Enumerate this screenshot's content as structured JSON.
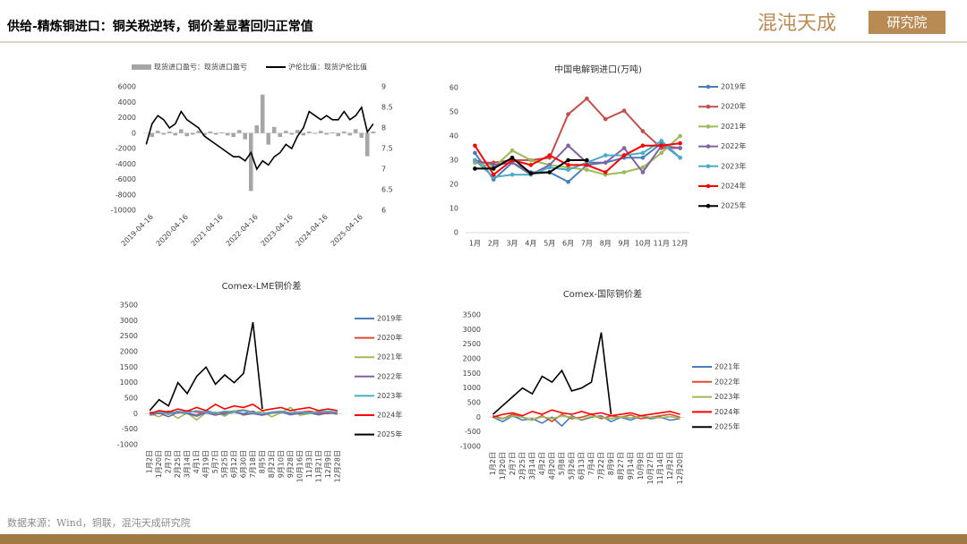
{
  "header": {
    "title": "供给-精炼铜进口：铜关税逆转，铜价差显著回归正常值",
    "logo_main": "混沌天成",
    "logo_sub": "研究院"
  },
  "footer": {
    "source": "数据来源：Wind，铜联，混沌天成研究院"
  },
  "chart_data": [
    {
      "type": "combo",
      "legend": "top",
      "categories": [
        null,
        "2019-04-16",
        null,
        null,
        null,
        null,
        null,
        "2020-04-16",
        null,
        null,
        null,
        null,
        null,
        "2021-04-16",
        null,
        null,
        null,
        null,
        null,
        "2022-04-16",
        null,
        null,
        null,
        null,
        null,
        "2023-04-16",
        null,
        null,
        null,
        null,
        null,
        "2024-04-16",
        null,
        null,
        null,
        null,
        null,
        "2025-04-16",
        null,
        null
      ],
      "ylim": [
        -10000,
        6000
      ],
      "yticks": [
        -10000,
        -8000,
        -6000,
        -4000,
        -2000,
        0,
        2000,
        4000,
        6000
      ],
      "y2lim": [
        6,
        9
      ],
      "y2ticks": [
        6,
        6.5,
        7,
        7.5,
        8,
        8.5,
        9
      ],
      "series": [
        {
          "name": "现货进口盈亏：现货进口盈亏",
          "color": "#a6a6a6",
          "kind": "bar",
          "axis": "y",
          "values": [
            0,
            -500,
            300,
            -200,
            200,
            -300,
            500,
            -400,
            -200,
            300,
            -300,
            200,
            -200,
            100,
            -300,
            -500,
            400,
            -800,
            -7500,
            1000,
            5000,
            -1500,
            800,
            -500,
            300,
            -200,
            400,
            -300,
            200,
            -100,
            300,
            -200,
            100,
            -400,
            200,
            -300,
            500,
            -600,
            -3000,
            200
          ]
        },
        {
          "name": "沪伦比值：现货沪伦比值",
          "color": "#000000",
          "kind": "line",
          "axis": "y2",
          "values": [
            7.6,
            8.1,
            8.3,
            8.2,
            8.0,
            8.1,
            8.4,
            8.2,
            8.1,
            8.0,
            7.8,
            7.7,
            7.6,
            7.5,
            7.4,
            7.3,
            7.3,
            7.2,
            7.4,
            7.0,
            7.2,
            7.1,
            7.3,
            7.4,
            7.6,
            7.5,
            7.8,
            8.0,
            8.4,
            8.3,
            8.2,
            8.3,
            8.2,
            8.2,
            8.4,
            8.2,
            8.3,
            8.5,
            7.9,
            8.1
          ]
        }
      ]
    },
    {
      "type": "line",
      "legend": "right",
      "title": "中国电解铜进口(万吨)",
      "categories": [
        "1月",
        "2月",
        "3月",
        "4月",
        "5月",
        "6月",
        "7月",
        "8月",
        "9月",
        "10月",
        "11月",
        "12月"
      ],
      "ylim": [
        0,
        60
      ],
      "yticks": [
        0,
        10,
        20,
        30,
        40,
        50,
        60
      ],
      "series": [
        {
          "name": "2019年",
          "color": "#4a7ebb",
          "values": [
            33,
            22,
            29,
            25,
            25,
            21,
            28,
            29,
            31,
            31,
            37,
            31
          ]
        },
        {
          "name": "2020年",
          "color": "#c0504d",
          "values": [
            29,
            29,
            30,
            30,
            31,
            49,
            55.5,
            47,
            50.5,
            42,
            35,
            35
          ]
        },
        {
          "name": "2021年",
          "color": "#9bbb59",
          "values": [
            29,
            27,
            34,
            30,
            28,
            27,
            26,
            24,
            25,
            27,
            33,
            40
          ]
        },
        {
          "name": "2022年",
          "color": "#8064a2",
          "values": [
            30,
            28,
            29,
            24,
            28,
            36,
            29,
            29,
            35,
            25,
            36,
            35
          ]
        },
        {
          "name": "2023年",
          "color": "#4bacc6",
          "values": [
            30,
            23,
            24,
            24,
            27,
            26,
            29,
            32,
            32,
            33,
            38,
            31
          ]
        },
        {
          "name": "2024年",
          "color": "#ff0000",
          "values": [
            36,
            24,
            30,
            28,
            32,
            28,
            28,
            25,
            32,
            36,
            36,
            37
          ]
        },
        {
          "name": "2025年",
          "color": "#000000",
          "values": [
            26.5,
            26.5,
            31,
            24.5,
            25,
            30,
            30,
            null,
            null,
            null,
            null,
            null
          ]
        }
      ]
    },
    {
      "type": "line",
      "legend": "right",
      "title": "Comex-LME铜价差",
      "categories": [
        "1月2日",
        "1月20日",
        "2月7日",
        "2月25日",
        "3月14日",
        "4月1日",
        "4月19日",
        "5月7日",
        "5月25日",
        "6月12日",
        "6月30日",
        "7月18日",
        "8月5日",
        "8月23日",
        "9月10日",
        "9月28日",
        "10月16日",
        "11月3日",
        "11月21日",
        "12月9日",
        "12月28日"
      ],
      "ylim": [
        -1000,
        3500
      ],
      "yticks": [
        -1000,
        -500,
        0,
        500,
        1000,
        1500,
        2000,
        2500,
        3000,
        3500
      ],
      "series": [
        {
          "name": "2019年",
          "color": "#4a7ebb",
          "values": [
            0,
            50,
            -20,
            80,
            30,
            -50,
            100,
            20,
            -30,
            50,
            0,
            80,
            -20,
            30,
            60,
            -40,
            20,
            50,
            0,
            30,
            40
          ]
        },
        {
          "name": "2020年",
          "color": "#e04a32",
          "values": [
            50,
            0,
            80,
            20,
            100,
            50,
            30,
            0,
            60,
            80,
            120,
            50,
            0,
            30,
            60,
            20,
            50,
            80,
            30,
            0,
            60
          ]
        },
        {
          "name": "2021年",
          "color": "#9bbb59",
          "values": [
            0,
            -100,
            50,
            -150,
            20,
            -200,
            30,
            50,
            -80,
            100,
            -50,
            20,
            80,
            -100,
            30,
            200,
            -50,
            0,
            100,
            50,
            -30
          ]
        },
        {
          "name": "2022年",
          "color": "#8064a2",
          "values": [
            -50,
            20,
            -100,
            50,
            0,
            -80,
            30,
            -50,
            20,
            60,
            -30,
            0,
            -50,
            20,
            50,
            -20,
            0,
            30,
            -40,
            20,
            0
          ]
        },
        {
          "name": "2023年",
          "color": "#4bacc6",
          "values": [
            20,
            50,
            0,
            80,
            30,
            100,
            50,
            20,
            80,
            50,
            100,
            30,
            0,
            50,
            80,
            30,
            60,
            20,
            50,
            80,
            40
          ]
        },
        {
          "name": "2024年",
          "color": "#ff0000",
          "values": [
            0,
            100,
            50,
            150,
            80,
            200,
            100,
            300,
            150,
            250,
            200,
            300,
            100,
            150,
            200,
            100,
            150,
            200,
            100,
            150,
            100
          ]
        },
        {
          "name": "2025年",
          "color": "#000000",
          "values": [
            100,
            450,
            250,
            1000,
            650,
            1200,
            1500,
            950,
            1250,
            1000,
            1300,
            2950,
            150,
            null,
            null,
            null,
            null,
            null,
            null,
            null,
            null
          ]
        }
      ]
    },
    {
      "type": "line",
      "legend": "right",
      "title": "Comex-国际铜价差",
      "categories": [
        "1月2日",
        "1月20日",
        "2月7日",
        "2月25日",
        "3月14日",
        "4月2日",
        "4月20日",
        "5月8日",
        "5月26日",
        "6月13日",
        "7月4日",
        "7月22日",
        "8月9日",
        "8月27日",
        "9月14日",
        "10月9日",
        "10月27日",
        "11月14日",
        "12月2日",
        "12月20日"
      ],
      "ylim": [
        -1000,
        3500
      ],
      "yticks": [
        -1000,
        -500,
        0,
        500,
        1000,
        1500,
        2000,
        2500,
        3000,
        3500
      ],
      "series": [
        {
          "name": "2021年",
          "color": "#4a7ebb",
          "values": [
            0,
            -150,
            50,
            -100,
            -50,
            -200,
            0,
            -300,
            50,
            -100,
            0,
            50,
            -150,
            0,
            -100,
            50,
            -50,
            0,
            -100,
            -50
          ]
        },
        {
          "name": "2022年",
          "color": "#e04a32",
          "values": [
            50,
            -50,
            100,
            0,
            -100,
            50,
            -150,
            100,
            -50,
            0,
            100,
            -50,
            50,
            0,
            80,
            -50,
            0,
            50,
            100,
            0
          ]
        },
        {
          "name": "2023年",
          "color": "#9bbb59",
          "values": [
            0,
            -50,
            50,
            0,
            -100,
            20,
            -50,
            50,
            0,
            -80,
            30,
            0,
            -50,
            20,
            -30,
            50,
            0,
            -20,
            30,
            -50
          ]
        },
        {
          "name": "2024年",
          "color": "#ff0000",
          "values": [
            0,
            100,
            150,
            50,
            200,
            100,
            250,
            150,
            100,
            200,
            100,
            150,
            50,
            100,
            150,
            50,
            100,
            150,
            200,
            100
          ]
        },
        {
          "name": "2025年",
          "color": "#000000",
          "values": [
            100,
            400,
            700,
            1000,
            800,
            1400,
            1200,
            1600,
            900,
            1000,
            1200,
            2900,
            100,
            null,
            null,
            null,
            null,
            null,
            null,
            null
          ]
        }
      ]
    }
  ]
}
